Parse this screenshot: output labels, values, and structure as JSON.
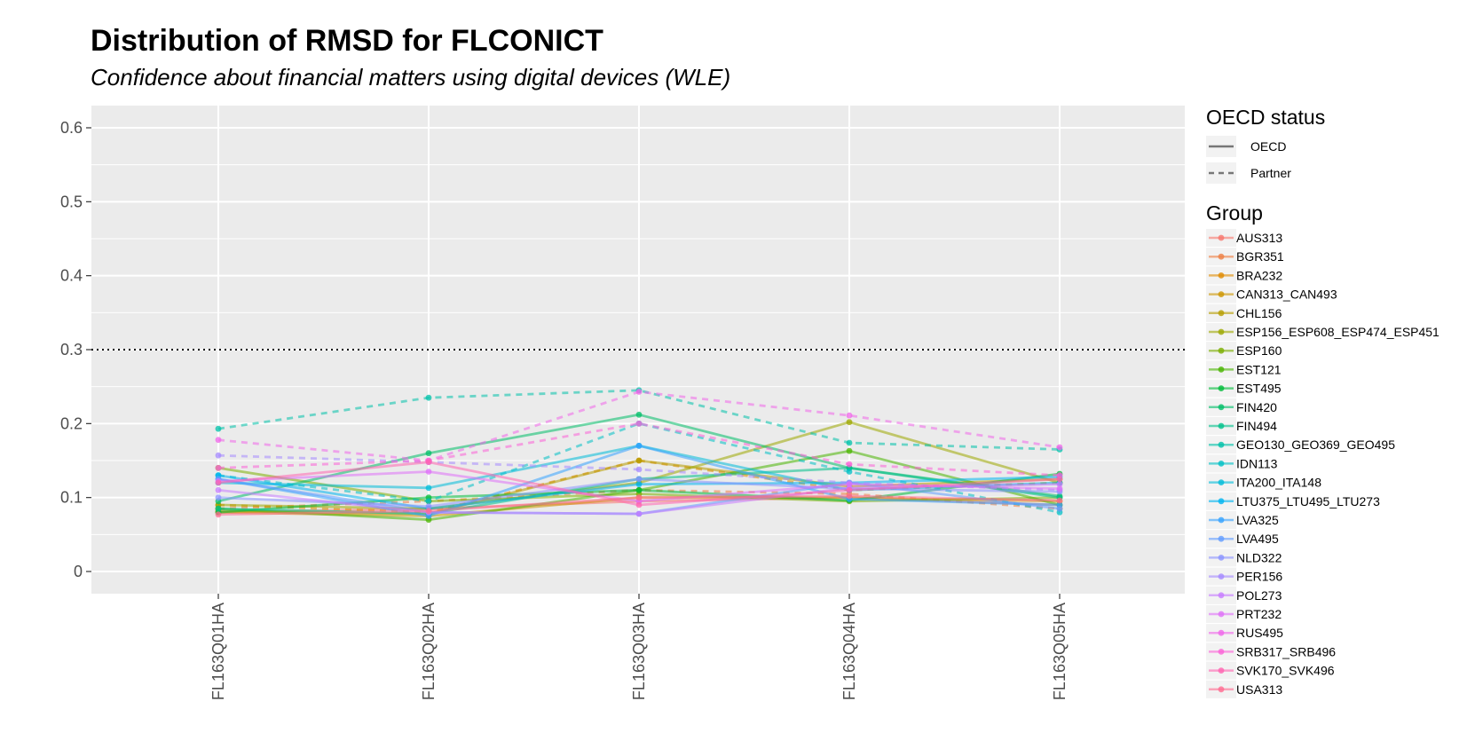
{
  "chart_data": {
    "type": "line",
    "title": "Distribution of RMSD for FLCONICT",
    "subtitle": "Confidence about financial matters using digital devices (WLE)",
    "xlabel": "",
    "ylabel": "",
    "categories": [
      "FL163Q01HA",
      "FL163Q02HA",
      "FL163Q03HA",
      "FL163Q04HA",
      "FL163Q05HA"
    ],
    "ylim": [
      -0.03,
      0.63
    ],
    "yticks": [
      0,
      0.1,
      0.2,
      0.3,
      0.4,
      0.5,
      0.6
    ],
    "ytick_labels": [
      "0",
      "0.1",
      "0.2",
      "0.3",
      "0.4",
      "0.5",
      "0.6"
    ],
    "reference_line": {
      "y": 0.3,
      "style": "dotted"
    },
    "grid": true,
    "legend_position": "right",
    "linetype_legend": {
      "title": "OECD status",
      "entries": [
        {
          "label": "OECD",
          "linetype": "solid"
        },
        {
          "label": "Partner",
          "linetype": "dashed"
        }
      ]
    },
    "group_legend_title": "Group",
    "series": [
      {
        "name": "AUS313",
        "color": "#F8766D",
        "status": "OECD",
        "values": [
          0.08,
          0.085,
          0.095,
          0.1,
          0.09
        ]
      },
      {
        "name": "BGR351",
        "color": "#EE8044",
        "status": "Partner",
        "values": [
          0.085,
          0.095,
          0.11,
          0.105,
          0.085
        ]
      },
      {
        "name": "BRA232",
        "color": "#E08B00",
        "status": "Partner",
        "values": [
          0.09,
          0.08,
          0.15,
          0.11,
          0.12
        ]
      },
      {
        "name": "CAN313_CAN493",
        "color": "#CD9600",
        "status": "OECD",
        "values": [
          0.08,
          0.075,
          0.1,
          0.1,
          0.095
        ]
      },
      {
        "name": "CHL156",
        "color": "#B69D00",
        "status": "OECD",
        "values": [
          0.082,
          0.078,
          0.15,
          0.115,
          0.125
        ]
      },
      {
        "name": "ESP156_ESP608_ESP474_ESP451",
        "color": "#9CA700",
        "status": "OECD",
        "values": [
          0.09,
          0.085,
          0.12,
          0.202,
          0.12
        ]
      },
      {
        "name": "ESP160",
        "color": "#7CAE00",
        "status": "OECD",
        "values": [
          0.14,
          0.095,
          0.105,
          0.095,
          0.1
        ]
      },
      {
        "name": "EST121",
        "color": "#49B400",
        "status": "OECD",
        "values": [
          0.085,
          0.07,
          0.11,
          0.163,
          0.09
        ]
      },
      {
        "name": "EST495",
        "color": "#00BA38",
        "status": "OECD",
        "values": [
          0.08,
          0.1,
          0.11,
          0.096,
          0.132
        ]
      },
      {
        "name": "FIN420",
        "color": "#00BE67",
        "status": "OECD",
        "values": [
          0.095,
          0.16,
          0.212,
          0.14,
          0.102
        ]
      },
      {
        "name": "FIN494",
        "color": "#00C08B",
        "status": "OECD",
        "values": [
          0.085,
          0.078,
          0.125,
          0.14,
          0.1
        ]
      },
      {
        "name": "GEO130_GEO369_GEO495",
        "color": "#00C1A9",
        "status": "Partner",
        "values": [
          0.193,
          0.235,
          0.245,
          0.174,
          0.165
        ]
      },
      {
        "name": "IDN113",
        "color": "#00BFC4",
        "status": "Partner",
        "values": [
          0.13,
          0.095,
          0.2,
          0.135,
          0.08
        ]
      },
      {
        "name": "ITA200_ITA148",
        "color": "#00BCD8",
        "status": "OECD",
        "values": [
          0.12,
          0.113,
          0.17,
          0.11,
          0.12
        ]
      },
      {
        "name": "LTU375_LTU495_LTU273",
        "color": "#00B4F0",
        "status": "OECD",
        "values": [
          0.13,
          0.085,
          0.118,
          0.12,
          0.128
        ]
      },
      {
        "name": "LVA325",
        "color": "#35A2FF",
        "status": "OECD",
        "values": [
          0.125,
          0.075,
          0.17,
          0.098,
          0.09
        ]
      },
      {
        "name": "LVA495",
        "color": "#619CFF",
        "status": "OECD",
        "values": [
          0.125,
          0.08,
          0.078,
          0.12,
          0.085
        ]
      },
      {
        "name": "NLD322",
        "color": "#8B93FF",
        "status": "OECD",
        "values": [
          0.1,
          0.088,
          0.125,
          0.112,
          0.108
        ]
      },
      {
        "name": "PER156",
        "color": "#A58AFF",
        "status": "Partner",
        "values": [
          0.157,
          0.148,
          0.138,
          0.12,
          0.11
        ]
      },
      {
        "name": "POL273",
        "color": "#C77CFF",
        "status": "OECD",
        "values": [
          0.11,
          0.08,
          0.078,
          0.113,
          0.118
        ]
      },
      {
        "name": "PRT232",
        "color": "#DF70F8",
        "status": "OECD",
        "values": [
          0.122,
          0.135,
          0.095,
          0.118,
          0.112
        ]
      },
      {
        "name": "RUS495",
        "color": "#F066EA",
        "status": "Partner",
        "values": [
          0.178,
          0.15,
          0.243,
          0.211,
          0.168
        ]
      },
      {
        "name": "SRB317_SRB496",
        "color": "#FB61D7",
        "status": "Partner",
        "values": [
          0.14,
          0.15,
          0.2,
          0.145,
          0.13
        ]
      },
      {
        "name": "SVK170_SVK496",
        "color": "#FF64B0",
        "status": "OECD",
        "values": [
          0.12,
          0.148,
          0.09,
          0.11,
          0.125
        ]
      },
      {
        "name": "USA313",
        "color": "#FF6C91",
        "status": "OECD",
        "values": [
          0.077,
          0.082,
          0.1,
          0.102,
          0.096
        ]
      }
    ]
  }
}
